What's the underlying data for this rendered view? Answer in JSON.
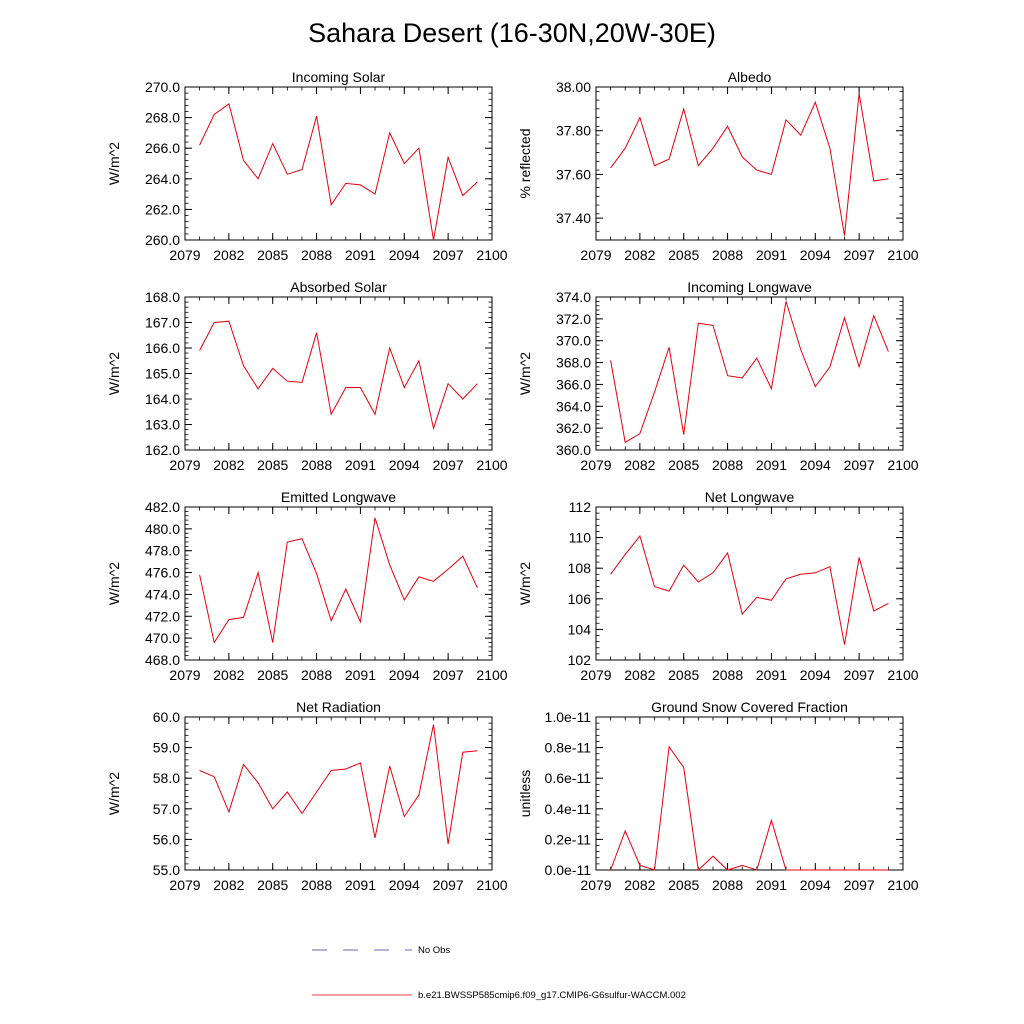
{
  "figure_title": "Sahara Desert (16-30N,20W-30E)",
  "legend": {
    "no_obs_label": "No Obs",
    "run_label": "b.e21.BWSSP585cmip6.f09_g17.CMIP6-G6sulfur-WACCM.002",
    "no_obs_color": "#3a3aa0",
    "run_color": "#e8000b"
  },
  "series_color": "#e8000b",
  "chart_data": [
    {
      "type": "line",
      "title": "Incoming Solar",
      "ylabel": "W/m^2",
      "xlim": [
        2079,
        2100
      ],
      "ylim": [
        260,
        270
      ],
      "xticks": [
        2079,
        2082,
        2085,
        2088,
        2091,
        2094,
        2097,
        2100
      ],
      "yticks": [
        260,
        262,
        264,
        266,
        268,
        270
      ],
      "ytick_labels": [
        "260.0",
        "262.0",
        "264.0",
        "266.0",
        "268.0",
        "270.0"
      ],
      "x": [
        2080,
        2081,
        2082,
        2083,
        2084,
        2085,
        2086,
        2087,
        2088,
        2089,
        2090,
        2091,
        2092,
        2093,
        2094,
        2095,
        2096,
        2097,
        2098,
        2099
      ],
      "values": [
        266.2,
        268.2,
        268.9,
        265.2,
        264.0,
        266.3,
        264.3,
        264.6,
        268.1,
        262.3,
        263.7,
        263.6,
        263.0,
        267.0,
        265.0,
        266.0,
        260.0,
        265.4,
        262.9,
        263.8
      ]
    },
    {
      "type": "line",
      "title": "Albedo",
      "ylabel": "% reflected",
      "xlim": [
        2079,
        2100
      ],
      "ylim": [
        37.3,
        38.0
      ],
      "xticks": [
        2079,
        2082,
        2085,
        2088,
        2091,
        2094,
        2097,
        2100
      ],
      "yticks": [
        37.4,
        37.6,
        37.8,
        38.0
      ],
      "ytick_labels": [
        "37.40",
        "37.60",
        "37.80",
        "38.00"
      ],
      "x": [
        2080,
        2081,
        2082,
        2083,
        2084,
        2085,
        2086,
        2087,
        2088,
        2089,
        2090,
        2091,
        2092,
        2093,
        2094,
        2095,
        2096,
        2097,
        2098,
        2099
      ],
      "values": [
        37.63,
        37.72,
        37.86,
        37.64,
        37.67,
        37.9,
        37.64,
        37.72,
        37.82,
        37.68,
        37.62,
        37.6,
        37.85,
        37.78,
        37.93,
        37.72,
        37.32,
        37.97,
        37.57,
        37.58
      ]
    },
    {
      "type": "line",
      "title": "Absorbed Solar",
      "ylabel": "W/m^2",
      "xlim": [
        2079,
        2100
      ],
      "ylim": [
        162,
        168
      ],
      "xticks": [
        2079,
        2082,
        2085,
        2088,
        2091,
        2094,
        2097,
        2100
      ],
      "yticks": [
        162,
        163,
        164,
        165,
        166,
        167,
        168
      ],
      "ytick_labels": [
        "162.0",
        "163.0",
        "164.0",
        "165.0",
        "166.0",
        "167.0",
        "168.0"
      ],
      "x": [
        2080,
        2081,
        2082,
        2083,
        2084,
        2085,
        2086,
        2087,
        2088,
        2089,
        2090,
        2091,
        2092,
        2093,
        2094,
        2095,
        2096,
        2097,
        2098,
        2099
      ],
      "values": [
        165.9,
        167.0,
        167.05,
        165.3,
        164.4,
        165.2,
        164.7,
        164.65,
        166.6,
        163.4,
        164.45,
        164.45,
        163.4,
        166.0,
        164.45,
        165.5,
        162.85,
        164.6,
        164.0,
        164.6
      ]
    },
    {
      "type": "line",
      "title": "Incoming Longwave",
      "ylabel": "W/m^2",
      "xlim": [
        2079,
        2100
      ],
      "ylim": [
        360,
        374
      ],
      "xticks": [
        2079,
        2082,
        2085,
        2088,
        2091,
        2094,
        2097,
        2100
      ],
      "yticks": [
        360,
        362,
        364,
        366,
        368,
        370,
        372,
        374
      ],
      "ytick_labels": [
        "360.0",
        "362.0",
        "364.0",
        "366.0",
        "368.0",
        "370.0",
        "372.0",
        "374.0"
      ],
      "x": [
        2080,
        2081,
        2082,
        2083,
        2084,
        2085,
        2086,
        2087,
        2088,
        2089,
        2090,
        2091,
        2092,
        2093,
        2094,
        2095,
        2096,
        2097,
        2098,
        2099
      ],
      "values": [
        368.2,
        360.7,
        361.5,
        365.3,
        369.4,
        361.4,
        371.6,
        371.4,
        366.8,
        366.6,
        368.4,
        365.6,
        373.6,
        369.2,
        365.8,
        367.6,
        372.1,
        367.6,
        372.3,
        369.0
      ]
    },
    {
      "type": "line",
      "title": "Emitted Longwave",
      "ylabel": "W/m^2",
      "xlim": [
        2079,
        2100
      ],
      "ylim": [
        468,
        482
      ],
      "xticks": [
        2079,
        2082,
        2085,
        2088,
        2091,
        2094,
        2097,
        2100
      ],
      "yticks": [
        468,
        470,
        472,
        474,
        476,
        478,
        480,
        482
      ],
      "ytick_labels": [
        "468.0",
        "470.0",
        "472.0",
        "474.0",
        "476.0",
        "478.0",
        "480.0",
        "482.0"
      ],
      "x": [
        2080,
        2081,
        2082,
        2083,
        2084,
        2085,
        2086,
        2087,
        2088,
        2089,
        2090,
        2091,
        2092,
        2093,
        2094,
        2095,
        2096,
        2097,
        2098,
        2099
      ],
      "values": [
        475.8,
        469.6,
        471.7,
        471.9,
        476.0,
        469.6,
        478.8,
        479.1,
        475.9,
        471.6,
        474.5,
        471.5,
        481.0,
        476.7,
        473.5,
        475.6,
        475.2,
        476.3,
        477.5,
        474.6
      ]
    },
    {
      "type": "line",
      "title": "Net Longwave",
      "ylabel": "W/m^2",
      "xlim": [
        2079,
        2100
      ],
      "ylim": [
        102,
        112
      ],
      "xticks": [
        2079,
        2082,
        2085,
        2088,
        2091,
        2094,
        2097,
        2100
      ],
      "yticks": [
        102,
        104,
        106,
        108,
        110,
        112
      ],
      "ytick_labels": [
        "102",
        "104",
        "106",
        "108",
        "110",
        "112"
      ],
      "x": [
        2080,
        2081,
        2082,
        2083,
        2084,
        2085,
        2086,
        2087,
        2088,
        2089,
        2090,
        2091,
        2092,
        2093,
        2094,
        2095,
        2096,
        2097,
        2098,
        2099
      ],
      "values": [
        107.6,
        108.9,
        110.1,
        106.8,
        106.5,
        108.2,
        107.1,
        107.7,
        109.0,
        105.0,
        106.1,
        105.9,
        107.3,
        107.6,
        107.7,
        108.1,
        103.0,
        108.7,
        105.2,
        105.7
      ]
    },
    {
      "type": "line",
      "title": "Net Radiation",
      "ylabel": "W/m^2",
      "xlim": [
        2079,
        2100
      ],
      "ylim": [
        55,
        60
      ],
      "xticks": [
        2079,
        2082,
        2085,
        2088,
        2091,
        2094,
        2097,
        2100
      ],
      "yticks": [
        55,
        56,
        57,
        58,
        59,
        60
      ],
      "ytick_labels": [
        "55.0",
        "56.0",
        "57.0",
        "58.0",
        "59.0",
        "60.0"
      ],
      "x": [
        2080,
        2081,
        2082,
        2083,
        2084,
        2085,
        2086,
        2087,
        2088,
        2089,
        2090,
        2091,
        2092,
        2093,
        2094,
        2095,
        2096,
        2097,
        2098,
        2099
      ],
      "values": [
        58.25,
        58.05,
        56.9,
        58.45,
        57.85,
        57.0,
        57.55,
        56.85,
        57.55,
        58.25,
        58.3,
        58.5,
        56.05,
        58.4,
        56.75,
        57.45,
        59.75,
        55.85,
        58.85,
        58.9
      ]
    },
    {
      "type": "line",
      "title": "Ground Snow Covered Fraction",
      "ylabel": "unitless",
      "xlim": [
        2079,
        2100
      ],
      "ylim": [
        0,
        1e-11
      ],
      "xticks": [
        2079,
        2082,
        2085,
        2088,
        2091,
        2094,
        2097,
        2100
      ],
      "yticks": [
        0,
        2e-12,
        4e-12,
        6e-12,
        8e-12,
        1e-11
      ],
      "ytick_labels": [
        "0.0e-11",
        "0.2e-11",
        "0.4e-11",
        "0.6e-11",
        "0.8e-11",
        "1.0e-11"
      ],
      "x": [
        2080,
        2081,
        2082,
        2083,
        2084,
        2085,
        2086,
        2087,
        2088,
        2089,
        2090,
        2091,
        2092,
        2093,
        2094,
        2095,
        2096,
        2097,
        2098,
        2099
      ],
      "values": [
        0,
        2.55e-12,
        3e-13,
        0,
        8.05e-12,
        6.7e-12,
        0,
        9e-13,
        0,
        3e-13,
        0,
        3.25e-12,
        0,
        0,
        0,
        0,
        0,
        0,
        0,
        0
      ]
    }
  ]
}
